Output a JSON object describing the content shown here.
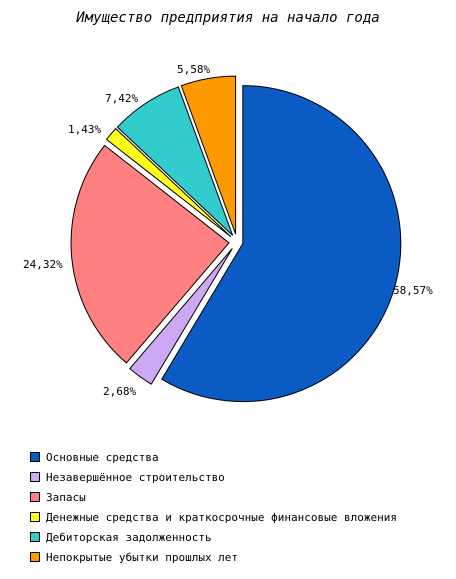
{
  "chart_data": {
    "type": "pie",
    "title": "Имущество предприятия на начало года",
    "exploded": true,
    "legend_position": "bottom",
    "slices": [
      {
        "name": "Основные средства",
        "value": 58.57,
        "label": "58,57%",
        "color": "#0A5CC4"
      },
      {
        "name": "Незавершённое строительство",
        "value": 2.68,
        "label": "2,68%",
        "color": "#CDA8F5"
      },
      {
        "name": "Запасы",
        "value": 24.32,
        "label": "24,32%",
        "color": "#FF8080"
      },
      {
        "name": "Денежные средства и краткосрочные финансовые вложения",
        "value": 1.43,
        "label": "1,43%",
        "color": "#FFFF1A"
      },
      {
        "name": "Дебиторская задолженность",
        "value": 7.42,
        "label": "7,42%",
        "color": "#33CCCC"
      },
      {
        "name": "Непокрытые убытки прошлых лет",
        "value": 5.58,
        "label": "5,58%",
        "color": "#FF9900"
      }
    ]
  }
}
